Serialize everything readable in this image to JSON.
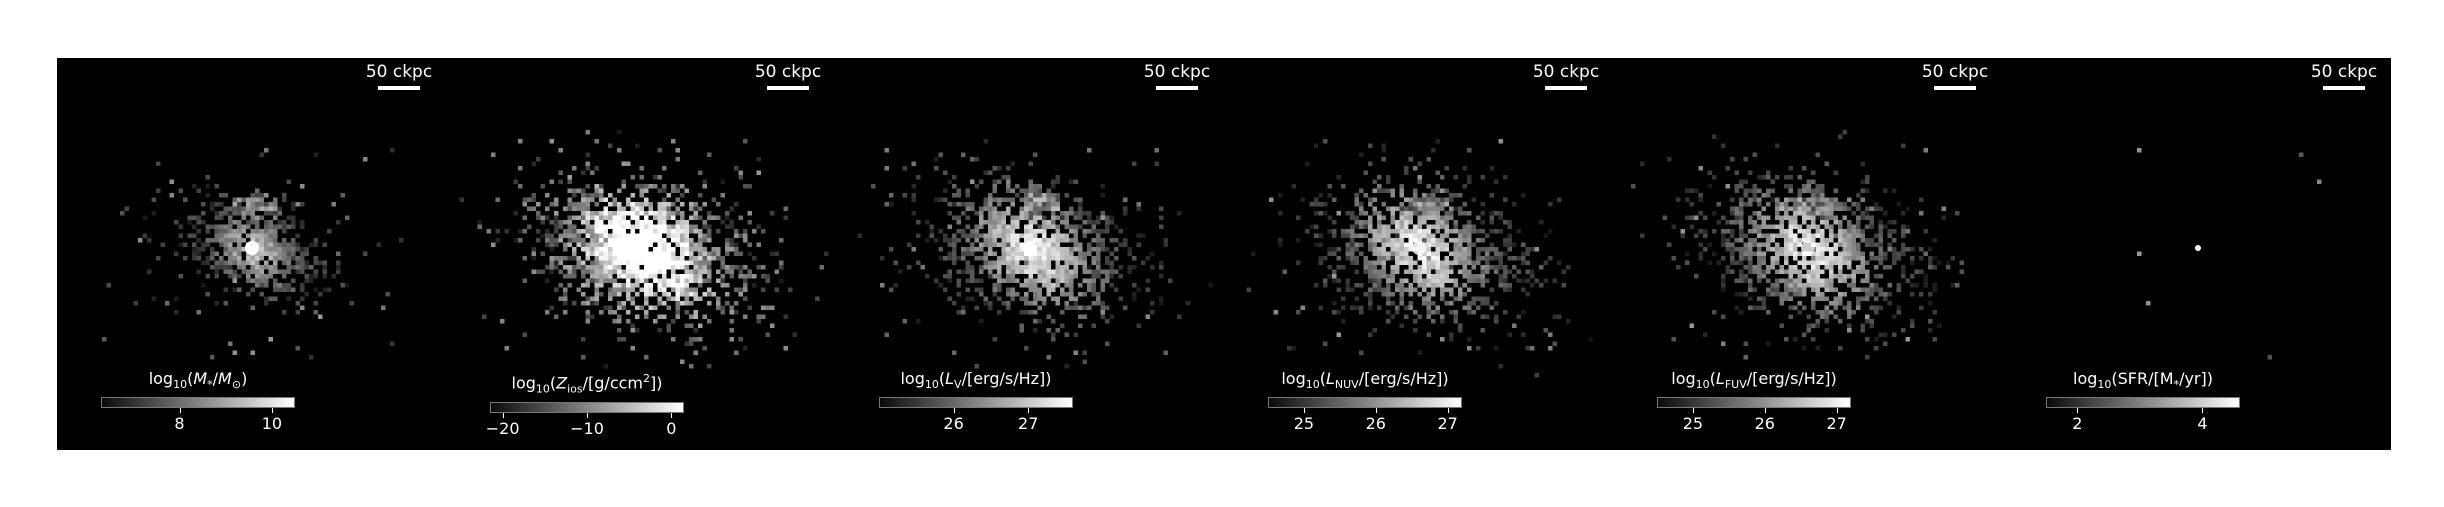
{
  "figure": {
    "panels": [
      {
        "id": "stellar-mass",
        "scale_bar": "50 ckpc",
        "colorbar": {
          "label_parts": [
            "log",
            "10",
            "(",
            "M",
            "*",
            "/",
            "M",
            "⊙",
            ")"
          ],
          "vmin": 6.3,
          "vmax": 10.5,
          "ticks": [
            {
              "value": 8,
              "label": "8"
            },
            {
              "value": 10,
              "label": "10"
            }
          ]
        },
        "blob": {
          "spread": "compact",
          "peak_level": 1.0,
          "secondary_clump": true
        }
      },
      {
        "id": "metallicity",
        "scale_bar": "50 ckpc",
        "colorbar": {
          "label_parts": [
            "log",
            "10",
            "(",
            "Z",
            "ios",
            "/[g/ccm",
            "2",
            "])"
          ],
          "vmin": -21.5,
          "vmax": 1.5,
          "ticks": [
            {
              "value": -20,
              "label": "−20"
            },
            {
              "value": -10,
              "label": "−10"
            },
            {
              "value": 0,
              "label": "0"
            }
          ]
        },
        "blob": {
          "spread": "wide",
          "peak_level": 1.0,
          "secondary_clump": false
        }
      },
      {
        "id": "luminosity-v",
        "scale_bar": "50 ckpc",
        "colorbar": {
          "label_parts": [
            "log",
            "10",
            "(",
            "L",
            "V",
            "/[erg/s/Hz])"
          ],
          "vmin": 25.0,
          "vmax": 27.6,
          "ticks": [
            {
              "value": 26,
              "label": "26"
            },
            {
              "value": 27,
              "label": "27"
            }
          ]
        },
        "blob": {
          "spread": "medium",
          "peak_level": 1.0,
          "secondary_clump": true
        }
      },
      {
        "id": "luminosity-nuv",
        "scale_bar": "50 ckpc",
        "colorbar": {
          "label_parts": [
            "log",
            "10",
            "(",
            "L",
            "NUV",
            "/[erg/s/Hz])"
          ],
          "vmin": 24.5,
          "vmax": 27.2,
          "ticks": [
            {
              "value": 25,
              "label": "25"
            },
            {
              "value": 26,
              "label": "26"
            },
            {
              "value": 27,
              "label": "27"
            }
          ]
        },
        "blob": {
          "spread": "medium",
          "peak_level": 0.8,
          "secondary_clump": true
        }
      },
      {
        "id": "luminosity-fuv",
        "scale_bar": "50 ckpc",
        "colorbar": {
          "label_parts": [
            "log",
            "10",
            "(",
            "L",
            "FUV",
            "/[erg/s/Hz])"
          ],
          "vmin": 24.5,
          "vmax": 27.2,
          "ticks": [
            {
              "value": 25,
              "label": "25"
            },
            {
              "value": 26,
              "label": "26"
            },
            {
              "value": 27,
              "label": "27"
            }
          ]
        },
        "blob": {
          "spread": "medium",
          "peak_level": 0.8,
          "secondary_clump": true
        }
      },
      {
        "id": "sfr",
        "scale_bar": "50 ckpc",
        "colorbar": {
          "label_parts": [
            "log",
            "10",
            "(SFR/[M",
            "*",
            "/yr])"
          ],
          "vmin": 1.5,
          "vmax": 4.6,
          "ticks": [
            {
              "value": 2,
              "label": "2"
            },
            {
              "value": 4,
              "label": "4"
            }
          ]
        },
        "blob": {
          "spread": "point",
          "peak_level": 1.0,
          "secondary_clump": false
        }
      }
    ]
  }
}
